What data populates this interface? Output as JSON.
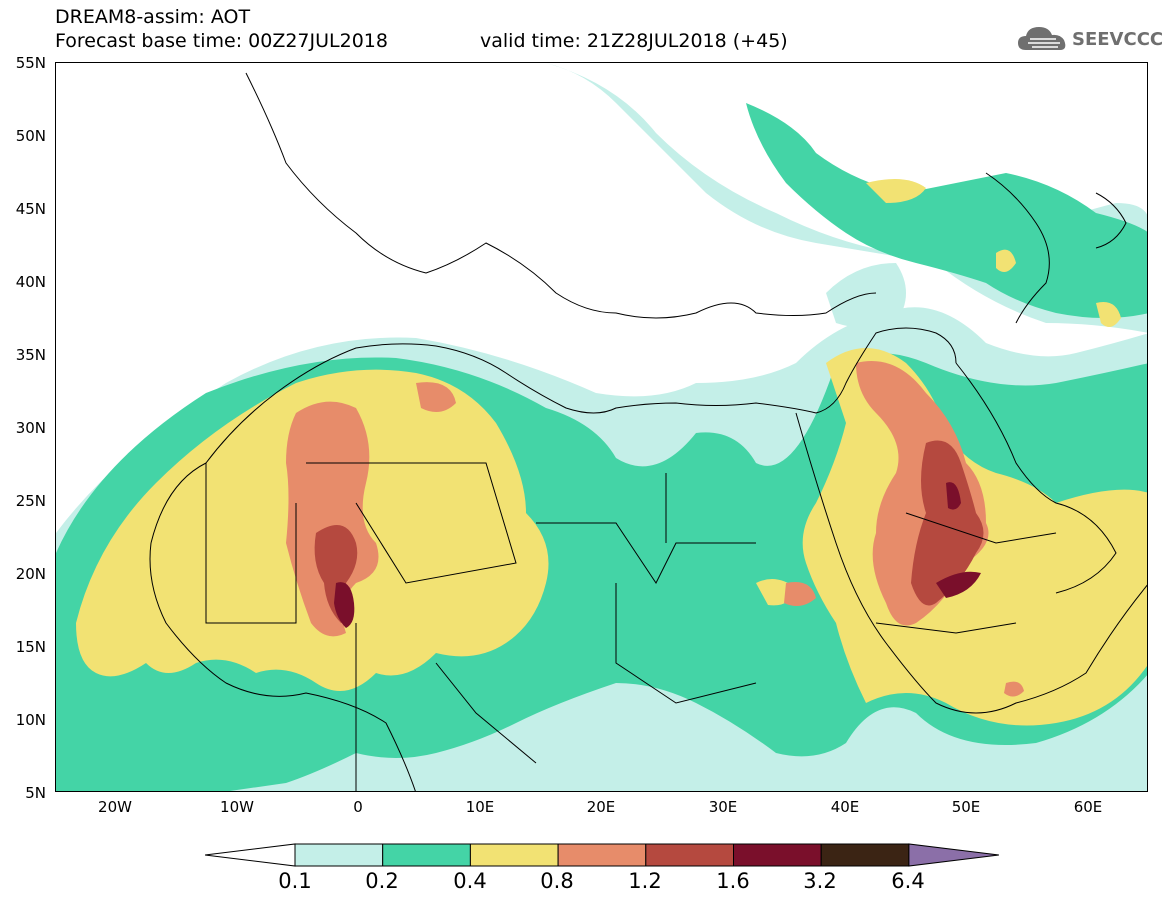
{
  "header": {
    "title": "DREAM8-assim: AOT",
    "forecast_base": "Forecast base time: 00Z27JUL2018",
    "valid_time": "valid time: 21Z28JUL2018 (+45)"
  },
  "logo": {
    "text": "SEEVCCC",
    "icon": "cloud-icon"
  },
  "map": {
    "lon_range": [
      -25,
      65
    ],
    "lat_range": [
      5,
      55
    ],
    "y_ticks": [
      "55N",
      "50N",
      "45N",
      "40N",
      "35N",
      "30N",
      "25N",
      "20N",
      "15N",
      "10N",
      "5N"
    ],
    "x_ticks": [
      "20W",
      "10W",
      "0",
      "10E",
      "20E",
      "30E",
      "40E",
      "50E",
      "60E"
    ]
  },
  "colorbar": {
    "labels": [
      "0.1",
      "0.2",
      "0.4",
      "0.8",
      "1.2",
      "1.6",
      "3.2",
      "6.4"
    ],
    "colors": [
      "#ffffff",
      "#c4efe8",
      "#44d4a6",
      "#f2e273",
      "#e78c6a",
      "#b5493f",
      "#7a0f2b",
      "#3b2414",
      "#8b6fa8"
    ]
  }
}
